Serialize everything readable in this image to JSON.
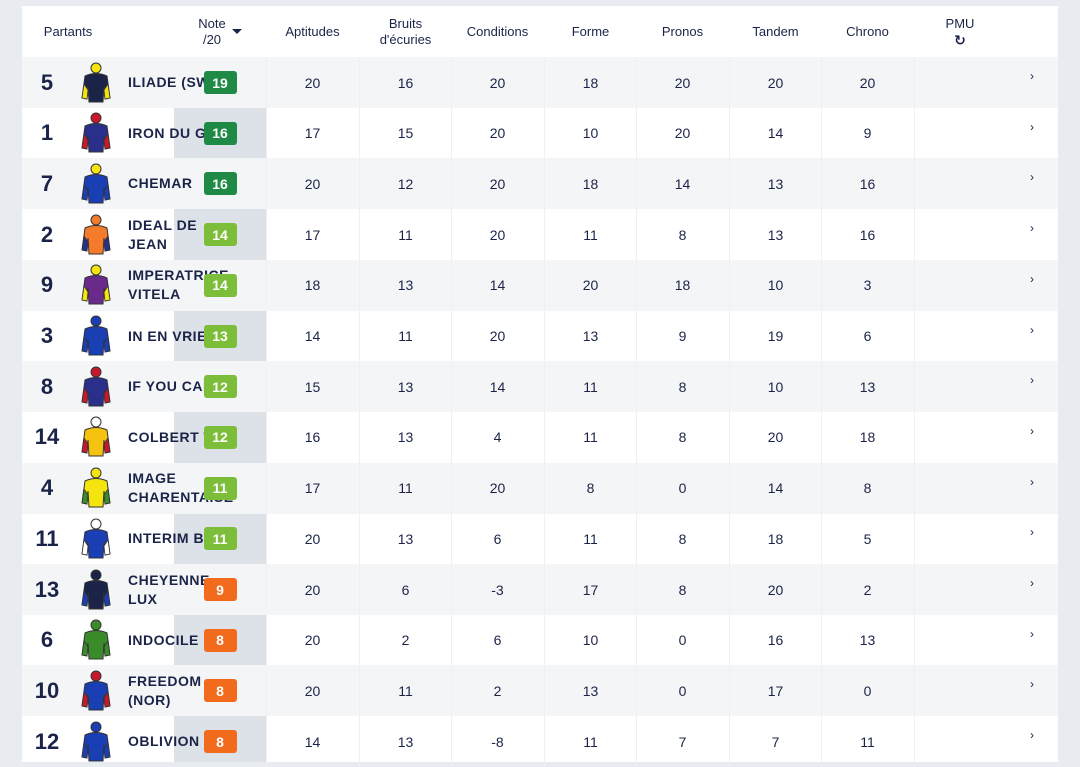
{
  "header": {
    "partants": "Partants",
    "note_line1": "Note",
    "note_line2": "/20",
    "columns": [
      "Aptitudes",
      "Bruits\nd'écuries",
      "Conditions",
      "Forme",
      "Pronos",
      "Tandem",
      "Chrono"
    ],
    "pmu": "PMU",
    "pmu_icon": "↻"
  },
  "colors": {
    "dark_green": "#1f8a45",
    "light_green": "#7cbd3a",
    "orange": "#f26b1d"
  },
  "rows": [
    {
      "num": "5",
      "name": "ILIADE (SWE)",
      "note": "19",
      "level": "dark_green",
      "values": [
        "20",
        "16",
        "20",
        "18",
        "20",
        "20",
        "20"
      ],
      "silk": [
        "#f5e50f",
        "#1b2448",
        "#f5e50f"
      ],
      "arrow": "›"
    },
    {
      "num": "1",
      "name": "IRON DU GERS",
      "note": "16",
      "level": "dark_green",
      "values": [
        "17",
        "15",
        "20",
        "10",
        "20",
        "14",
        "9"
      ],
      "silk": [
        "#c8182a",
        "#2a2f8c",
        "#c8182a"
      ],
      "arrow": "›"
    },
    {
      "num": "7",
      "name": "CHEMAR",
      "note": "16",
      "level": "dark_green",
      "values": [
        "20",
        "12",
        "20",
        "18",
        "14",
        "13",
        "16"
      ],
      "silk": [
        "#f5e50f",
        "#1a3fb5",
        "#1a3fb5"
      ],
      "arrow": "›"
    },
    {
      "num": "2",
      "name": "IDEAL DE JEAN",
      "note": "14",
      "level": "light_green",
      "values": [
        "17",
        "11",
        "20",
        "11",
        "8",
        "13",
        "16"
      ],
      "silk": [
        "#f47a2c",
        "#f47a2c",
        "#2a2f8c"
      ],
      "arrow": "›"
    },
    {
      "num": "9",
      "name": "IMPERATRICE VITELA",
      "note": "14",
      "level": "light_green",
      "values": [
        "18",
        "13",
        "14",
        "20",
        "18",
        "10",
        "3"
      ],
      "silk": [
        "#f5e50f",
        "#6a2a8c",
        "#f5e50f"
      ],
      "arrow": "›"
    },
    {
      "num": "3",
      "name": "IN EN VRIE",
      "note": "13",
      "level": "light_green",
      "values": [
        "14",
        "11",
        "20",
        "13",
        "9",
        "19",
        "6"
      ],
      "silk": [
        "#1a3fb5",
        "#1a3fb5",
        "#1a3fb5"
      ],
      "arrow": "›"
    },
    {
      "num": "8",
      "name": "IF YOU CAN",
      "note": "12",
      "level": "light_green",
      "values": [
        "15",
        "13",
        "14",
        "11",
        "8",
        "10",
        "13"
      ],
      "silk": [
        "#c8182a",
        "#2a2f8c",
        "#c8182a"
      ],
      "arrow": "›"
    },
    {
      "num": "14",
      "name": "COLBERT WF",
      "note": "12",
      "level": "light_green",
      "values": [
        "16",
        "13",
        "4",
        "11",
        "8",
        "20",
        "18"
      ],
      "silk": [
        "#ffffff",
        "#f5c20f",
        "#c8182a"
      ],
      "arrow": "›"
    },
    {
      "num": "4",
      "name": "IMAGE CHARENTAISE",
      "note": "11",
      "level": "light_green",
      "values": [
        "17",
        "11",
        "20",
        "8",
        "0",
        "14",
        "8"
      ],
      "silk": [
        "#f5e50f",
        "#f5e50f",
        "#3a8c2a"
      ],
      "arrow": "›"
    },
    {
      "num": "11",
      "name": "INTERIM BOY",
      "note": "11",
      "level": "light_green",
      "values": [
        "20",
        "13",
        "6",
        "11",
        "8",
        "18",
        "5"
      ],
      "silk": [
        "#ffffff",
        "#1a3fb5",
        "#ffffff"
      ],
      "arrow": "›"
    },
    {
      "num": "13",
      "name": "CHEYENNE LUX",
      "note": "9",
      "level": "orange",
      "values": [
        "20",
        "6",
        "-3",
        "17",
        "8",
        "20",
        "2"
      ],
      "silk": [
        "#1b2448",
        "#1b2448",
        "#1a3fb5"
      ],
      "arrow": "›"
    },
    {
      "num": "6",
      "name": "INDOCILE",
      "note": "8",
      "level": "orange",
      "values": [
        "20",
        "2",
        "6",
        "10",
        "0",
        "16",
        "13"
      ],
      "silk": [
        "#3a8c2a",
        "#3a8c2a",
        "#3a8c2a"
      ],
      "arrow": "›"
    },
    {
      "num": "10",
      "name": "FREEDOM (NOR)",
      "note": "8",
      "level": "orange",
      "values": [
        "20",
        "11",
        "2",
        "13",
        "0",
        "17",
        "0"
      ],
      "silk": [
        "#c8182a",
        "#1a3fb5",
        "#c8182a"
      ],
      "arrow": "›"
    },
    {
      "num": "12",
      "name": "OBLIVION",
      "note": "8",
      "level": "orange",
      "values": [
        "14",
        "13",
        "-8",
        "11",
        "7",
        "7",
        "11"
      ],
      "silk": [
        "#1a3fb5",
        "#1a3fb5",
        "#1a3fb5"
      ],
      "arrow": "›"
    }
  ]
}
